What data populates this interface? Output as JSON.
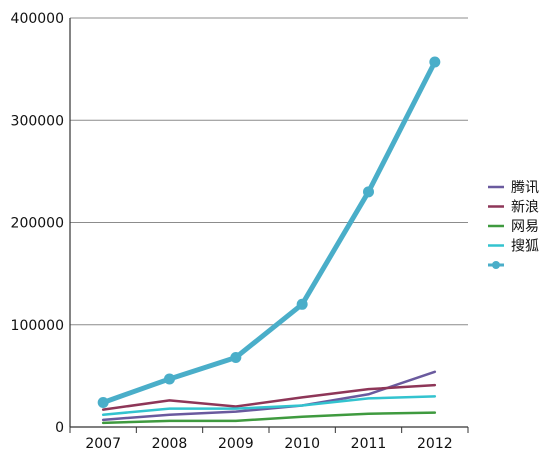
{
  "chart_data": {
    "type": "line",
    "categories": [
      "2007",
      "2008",
      "2009",
      "2010",
      "2011",
      "2012"
    ],
    "yticks": [
      "0",
      "100000",
      "200000",
      "300000",
      "400000"
    ],
    "ylim": [
      0,
      400000
    ],
    "grid": true,
    "legend_position": "right",
    "series": [
      {
        "name": "腾讯",
        "color": "#6a5a9e",
        "values": [
          7000,
          12000,
          15000,
          21000,
          32000,
          54000
        ]
      },
      {
        "name": "新浪",
        "color": "#8e3658",
        "values": [
          17000,
          26000,
          20000,
          29000,
          37000,
          41000
        ]
      },
      {
        "name": "网易",
        "color": "#3f9a3f",
        "values": [
          4000,
          6000,
          6000,
          10000,
          13000,
          14000
        ]
      },
      {
        "name": "搜狐",
        "color": "#33c3cf",
        "values": [
          12000,
          18000,
          18000,
          21000,
          28000,
          30000
        ]
      },
      {
        "name": "",
        "color": "#4aaec9",
        "values": [
          24000,
          47000,
          68000,
          120000,
          230000,
          357000
        ],
        "markers": true,
        "thick": true
      }
    ]
  }
}
